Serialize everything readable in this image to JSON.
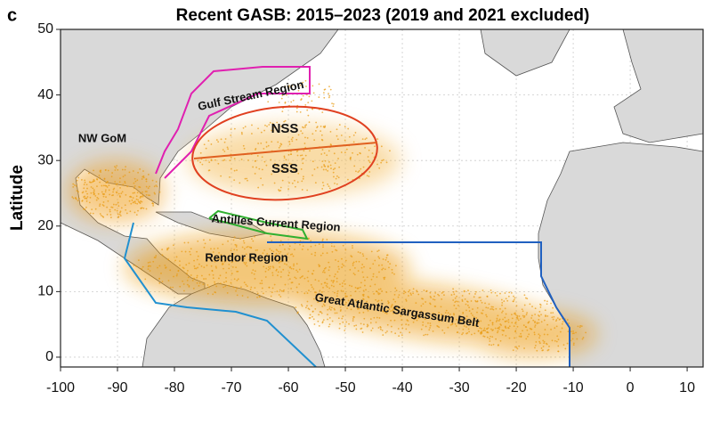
{
  "map": {
    "panel_label": "c",
    "title": "Recent GASB: 2015–2023 (2019 and 2021 excluded)",
    "y_label": "Latitude",
    "xlim": [
      -100,
      12.8
    ],
    "ylim": [
      -1.5,
      50
    ],
    "xticks": [
      -100,
      -90,
      -80,
      -70,
      -60,
      -50,
      -40,
      -30,
      -20,
      -10,
      0,
      10
    ],
    "yticks": [
      0,
      10,
      20,
      30,
      40,
      50
    ],
    "regions": [
      "NW GoM",
      "Gulf Stream Region",
      "NSS",
      "SSS",
      "Antilles Current Region",
      "Rendor Region",
      "Great Atlantic Sargassum Belt"
    ]
  }
}
